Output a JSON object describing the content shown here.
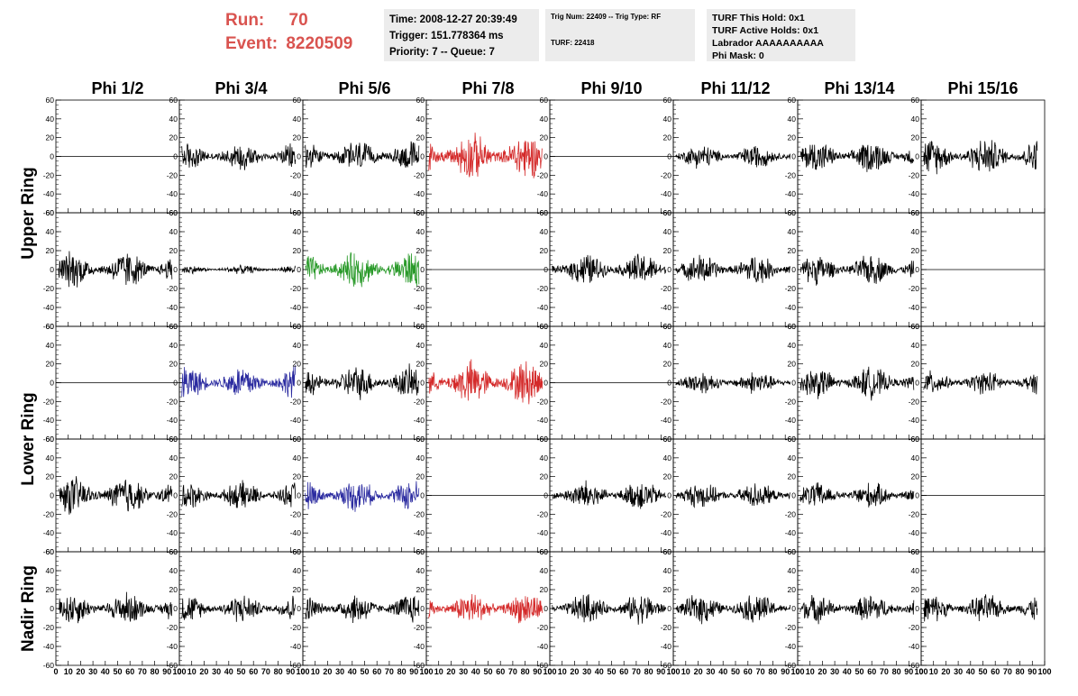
{
  "header": {
    "run_label": "Run:",
    "run_value": "70",
    "event_label": "Event:",
    "event_value": "8220509"
  },
  "info_panel_1": {
    "time": "Time: 2008-12-27 20:39:49",
    "trigger": "Trigger: 151.778364 ms",
    "priority": "Priority: 7 -- Queue: 7"
  },
  "info_panel_2": {
    "trig": "Trig Num: 22409 -- Trig Type: RF",
    "turf": "TURF: 22418"
  },
  "info_panel_3": {
    "hold": "TURF This Hold: 0x1",
    "active_holds": "TURF Active Holds: 0x1",
    "labrador": "Labrador AAAAAAAAAA",
    "phi_mask": "Phi Mask: 0"
  },
  "chart_data": {
    "type": "line",
    "title": "",
    "column_headers": [
      "Phi 1/2",
      "Phi 3/4",
      "Phi 5/6",
      "Phi 7/8",
      "Phi 9/10",
      "Phi 11/12",
      "Phi 13/14",
      "Phi 15/16"
    ],
    "ring_labels": [
      "Upper Ring",
      "Lower Ring",
      "Nadir Ring"
    ],
    "ring_row_spans": [
      [
        0,
        1
      ],
      [
        2,
        3
      ],
      [
        4,
        4
      ]
    ],
    "xlim": [
      0,
      100
    ],
    "ylim": [
      -60,
      60
    ],
    "xticks": [
      0,
      10,
      20,
      30,
      40,
      50,
      60,
      70,
      80,
      90,
      100
    ],
    "yticks": [
      -60,
      -40,
      -20,
      0,
      20,
      40,
      60
    ],
    "x_tick_labels": [
      "0",
      "10",
      "20",
      "30",
      "40",
      "50",
      "60",
      "70",
      "80",
      "90",
      "100"
    ],
    "y_tick_labels": [
      "-60",
      "-40",
      "-20",
      "0",
      "20",
      "40",
      "60"
    ],
    "colors": {
      "black": "#000000",
      "red": "#d42a2a",
      "green": "#2a9a2a",
      "blue": "#2b2ba0"
    },
    "rows": [
      [
        {
          "color": "black",
          "flat": true
        },
        {
          "color": "black",
          "amp": 13
        },
        {
          "color": "black",
          "amp": 15
        },
        {
          "color": "red",
          "amp": 22
        },
        {
          "color": "black",
          "flat": true
        },
        {
          "color": "black",
          "amp": 11
        },
        {
          "color": "black",
          "amp": 15
        },
        {
          "color": "black",
          "amp": 17
        }
      ],
      [
        {
          "color": "black",
          "amp": 17
        },
        {
          "color": "black",
          "amp": 4
        },
        {
          "color": "green",
          "amp": 17
        },
        {
          "color": "black",
          "flat": true
        },
        {
          "color": "black",
          "amp": 15
        },
        {
          "color": "black",
          "amp": 14
        },
        {
          "color": "black",
          "amp": 14
        },
        {
          "color": "black",
          "flat": true
        }
      ],
      [
        {
          "color": "black",
          "flat": true
        },
        {
          "color": "blue",
          "amp": 16
        },
        {
          "color": "black",
          "amp": 16
        },
        {
          "color": "red",
          "amp": 21
        },
        {
          "color": "black",
          "flat": true
        },
        {
          "color": "black",
          "amp": 11
        },
        {
          "color": "black",
          "amp": 15
        },
        {
          "color": "black",
          "amp": 11
        }
      ],
      [
        {
          "color": "black",
          "amp": 18
        },
        {
          "color": "black",
          "amp": 13
        },
        {
          "color": "blue",
          "amp": 15
        },
        {
          "color": "black",
          "flat": true
        },
        {
          "color": "black",
          "amp": 14
        },
        {
          "color": "black",
          "amp": 12
        },
        {
          "color": "black",
          "amp": 12
        },
        {
          "color": "black",
          "flat": true
        }
      ],
      [
        {
          "color": "black",
          "amp": 15
        },
        {
          "color": "black",
          "amp": 13
        },
        {
          "color": "black",
          "amp": 14
        },
        {
          "color": "red",
          "amp": 15
        },
        {
          "color": "black",
          "amp": 14
        },
        {
          "color": "black",
          "amp": 14
        },
        {
          "color": "black",
          "amp": 13
        },
        {
          "color": "black",
          "amp": 13
        }
      ]
    ]
  }
}
